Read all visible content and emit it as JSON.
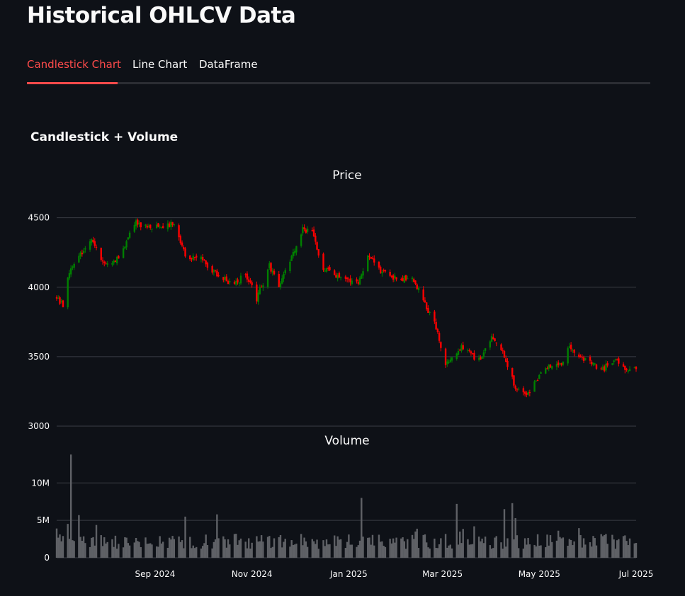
{
  "page": {
    "title": "Historical OHLCV Data"
  },
  "tabs": [
    {
      "label": "Candlestick Chart",
      "active": true
    },
    {
      "label": "Line Chart",
      "active": false
    },
    {
      "label": "DataFrame",
      "active": false
    }
  ],
  "chart_heading": "Candlestick + Volume",
  "colors": {
    "background": "#0e1117",
    "up": "#008000",
    "down": "#ff0000",
    "volume": "#5f6166",
    "grid": "#3a3d44",
    "accent": "#ff4b4b"
  },
  "chart_data": {
    "type": "candlestick",
    "price_panel": {
      "title": "Price",
      "ylim": [
        3000,
        4600
      ],
      "yticks": [
        3000,
        3500,
        4000,
        4500
      ],
      "ytick_labels": [
        "3000",
        "3500",
        "4000",
        "4500"
      ]
    },
    "volume_panel": {
      "title": "Volume",
      "ylim": [
        0,
        14000000
      ],
      "yticks": [
        0,
        5000000,
        10000000
      ],
      "ytick_labels": [
        "0",
        "5M",
        "10M"
      ]
    },
    "x_axis": {
      "range": [
        "2024-07-01",
        "2025-07-01"
      ],
      "ticks": [
        "2024-09-01",
        "2024-11-01",
        "2025-01-01",
        "2025-03-01",
        "2025-05-01",
        "2025-07-01"
      ],
      "tick_labels": [
        "Sep 2024",
        "Nov 2024",
        "Jan 2025",
        "Mar 2025",
        "May 2025",
        "Jul 2025"
      ]
    },
    "grid": true,
    "legend": "none",
    "close_keypoints": [
      [
        "2024-07-01",
        3940
      ],
      [
        "2024-07-05",
        3860
      ],
      [
        "2024-07-08",
        4090
      ],
      [
        "2024-07-15",
        4230
      ],
      [
        "2024-07-24",
        4340
      ],
      [
        "2024-07-31",
        4170
      ],
      [
        "2024-08-08",
        4200
      ],
      [
        "2024-08-20",
        4460
      ],
      [
        "2024-09-03",
        4430
      ],
      [
        "2024-09-12",
        4460
      ],
      [
        "2024-09-20",
        4230
      ],
      [
        "2024-09-30",
        4210
      ],
      [
        "2024-10-10",
        4090
      ],
      [
        "2024-10-21",
        4010
      ],
      [
        "2024-10-28",
        4100
      ],
      [
        "2024-11-04",
        3920
      ],
      [
        "2024-11-12",
        4150
      ],
      [
        "2024-11-18",
        4010
      ],
      [
        "2024-11-25",
        4200
      ],
      [
        "2024-12-03",
        4410
      ],
      [
        "2024-12-09",
        4400
      ],
      [
        "2024-12-16",
        4130
      ],
      [
        "2024-12-24",
        4090
      ],
      [
        "2025-01-06",
        4020
      ],
      [
        "2025-01-14",
        4240
      ],
      [
        "2025-01-22",
        4100
      ],
      [
        "2025-02-03",
        4060
      ],
      [
        "2025-02-10",
        4080
      ],
      [
        "2025-02-24",
        3740
      ],
      [
        "2025-03-03",
        3450
      ],
      [
        "2025-03-12",
        3570
      ],
      [
        "2025-03-24",
        3470
      ],
      [
        "2025-04-01",
        3630
      ],
      [
        "2025-04-08",
        3520
      ],
      [
        "2025-04-16",
        3280
      ],
      [
        "2025-04-23",
        3220
      ],
      [
        "2025-05-05",
        3420
      ],
      [
        "2025-05-15",
        3450
      ],
      [
        "2025-05-19",
        3560
      ],
      [
        "2025-05-29",
        3480
      ],
      [
        "2025-06-09",
        3400
      ],
      [
        "2025-06-18",
        3480
      ],
      [
        "2025-06-25",
        3400
      ],
      [
        "2025-07-01",
        3420
      ]
    ],
    "price_low": 3030,
    "price_high": 4530,
    "volume_spikes": [
      [
        "2024-07-10",
        13800000
      ],
      [
        "2024-07-15",
        5700000
      ],
      [
        "2024-09-20",
        5500000
      ],
      [
        "2024-10-10",
        5800000
      ],
      [
        "2025-01-09",
        8000000
      ],
      [
        "2025-03-10",
        7200000
      ],
      [
        "2025-04-09",
        6500000
      ],
      [
        "2025-04-14",
        7300000
      ],
      [
        "2025-04-16",
        5300000
      ]
    ]
  }
}
